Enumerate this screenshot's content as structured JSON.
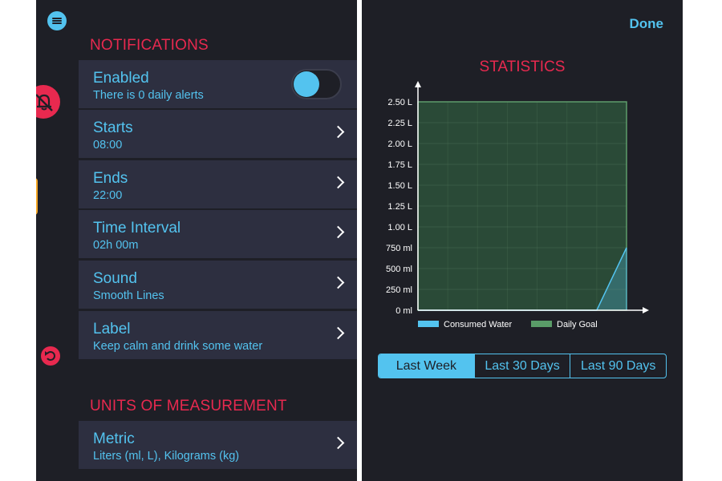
{
  "colors": {
    "accent": "#53c3ef",
    "header": "#e8294f",
    "row_bg": "#2d2f40",
    "bg": "#1e1f26",
    "goal": "#5a9c68"
  },
  "sidebar": {
    "icons": [
      "menu-icon",
      "bell-off-icon",
      "undo-icon"
    ]
  },
  "notifications": {
    "header": "NOTIFICATIONS",
    "rows": [
      {
        "title": "Enabled",
        "sub": "There is 0 daily alerts",
        "toggle_on": true
      },
      {
        "title": "Starts",
        "sub": "08:00"
      },
      {
        "title": "Ends",
        "sub": "22:00"
      },
      {
        "title": "Time Interval",
        "sub": "02h 00m"
      },
      {
        "title": "Sound",
        "sub": "Smooth Lines"
      },
      {
        "title": "Label",
        "sub": "Keep calm and drink some water"
      }
    ]
  },
  "units": {
    "header": "UNITS OF MEASUREMENT",
    "rows": [
      {
        "title": "Metric",
        "sub": "Liters (ml, L), Kilograms (kg)"
      }
    ]
  },
  "statistics": {
    "done_label": "Done",
    "title": "STATISTICS",
    "ranges": [
      "Last Week",
      "Last 30 Days",
      "Last 90 Days"
    ],
    "selected_range": "Last Week"
  },
  "chart_data": {
    "type": "area",
    "title": "STATISTICS",
    "y_ticks": [
      "0 ml",
      "250 ml",
      "500 ml",
      "750 ml",
      "1.00 L",
      "1.25 L",
      "1.50 L",
      "1.75 L",
      "2.00 L",
      "2.25 L",
      "2.50 L"
    ],
    "ylim": [
      0,
      2500
    ],
    "y_unit": "ml",
    "x": [
      1,
      2,
      3,
      4,
      5,
      6,
      7,
      8
    ],
    "series": [
      {
        "name": "Consumed Water",
        "color": "#53c3ef",
        "values": [
          0,
          0,
          0,
          0,
          0,
          0,
          0,
          750
        ]
      },
      {
        "name": "Daily Goal",
        "color": "#5a9c68",
        "values": [
          2500,
          2500,
          2500,
          2500,
          2500,
          2500,
          2500,
          2500
        ]
      }
    ],
    "legend": {
      "placement": "bottom",
      "entries": [
        "Consumed Water",
        "Daily Goal"
      ]
    },
    "grid": true
  }
}
